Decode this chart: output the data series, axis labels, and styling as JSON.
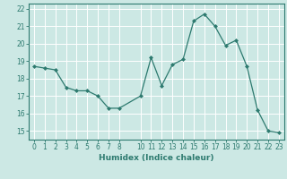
{
  "x": [
    0,
    1,
    2,
    3,
    4,
    5,
    6,
    7,
    8,
    10,
    11,
    12,
    13,
    14,
    15,
    16,
    17,
    18,
    19,
    20,
    21,
    22,
    23
  ],
  "y": [
    18.7,
    18.6,
    18.5,
    17.5,
    17.3,
    17.3,
    17.0,
    16.3,
    16.3,
    17.0,
    19.2,
    17.6,
    18.8,
    19.1,
    21.3,
    21.7,
    21.0,
    19.9,
    20.2,
    18.7,
    16.2,
    15.0,
    14.9
  ],
  "xlabel": "Humidex (Indice chaleur)",
  "xlim": [
    -0.5,
    23.5
  ],
  "ylim": [
    14.5,
    22.3
  ],
  "yticks": [
    15,
    16,
    17,
    18,
    19,
    20,
    21,
    22
  ],
  "xticks": [
    0,
    1,
    2,
    3,
    4,
    5,
    6,
    7,
    8,
    10,
    11,
    12,
    13,
    14,
    15,
    16,
    17,
    18,
    19,
    20,
    21,
    22,
    23
  ],
  "line_color": "#2d7a6f",
  "marker_color": "#2d7a6f",
  "bg_color": "#cce8e4",
  "grid_color": "#ffffff",
  "axis_color": "#2d7a6f",
  "tick_color": "#2d7a6f",
  "label_color": "#2d7a6f"
}
